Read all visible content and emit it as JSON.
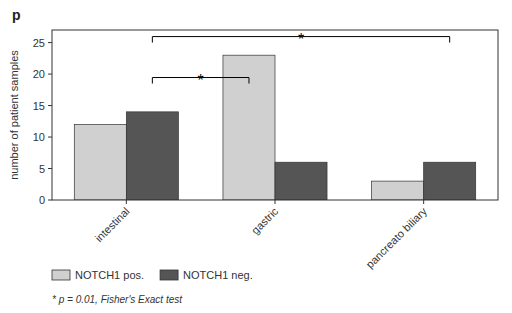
{
  "chart_data": {
    "type": "bar",
    "title": "p",
    "categories": [
      "intestinal",
      "gastric",
      "pancreato biliary"
    ],
    "series": [
      {
        "name": "NOTCH1 pos.",
        "color": "#d0d0d0",
        "values": [
          12,
          23,
          3
        ]
      },
      {
        "name": "NOTCH1 neg.",
        "color": "#555555",
        "values": [
          14,
          6,
          6
        ]
      }
    ],
    "y_label": "number of patient samples",
    "ylim": [
      0,
      27
    ],
    "yticks": [
      0,
      5,
      10,
      15,
      20,
      25
    ],
    "grid": false,
    "legend": "bottom",
    "annotations": [
      {
        "text": "*",
        "y": 18.5,
        "from": {
          "category": "intestinal",
          "series": "NOTCH1 neg."
        },
        "to": {
          "category": "gastric",
          "series": "NOTCH1 pos."
        }
      },
      {
        "text": "*",
        "y": 25.0,
        "from": {
          "category": "intestinal",
          "series": "NOTCH1 neg."
        },
        "to": {
          "category": "pancreato biliary",
          "series": "NOTCH1 neg."
        }
      },
      {
        "text": "* p = 0.01, Fisher's Exact  test"
      }
    ]
  }
}
